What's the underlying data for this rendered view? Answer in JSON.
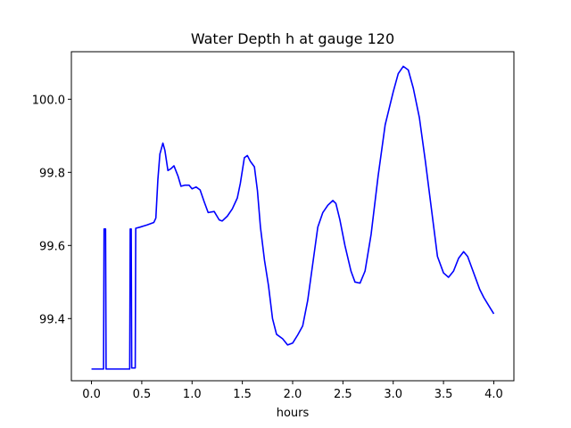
{
  "chart_data": {
    "type": "line",
    "title": "Water Depth h at gauge 120",
    "xlabel": "hours",
    "ylabel": "",
    "xlim": [
      -0.2,
      4.2
    ],
    "ylim": [
      99.23,
      100.13
    ],
    "x_ticks": [
      0.0,
      0.5,
      1.0,
      1.5,
      2.0,
      2.5,
      3.0,
      3.5,
      4.0
    ],
    "x_tick_labels": [
      "0.0",
      "0.5",
      "1.0",
      "1.5",
      "2.0",
      "2.5",
      "3.0",
      "3.5",
      "4.0"
    ],
    "y_ticks": [
      99.4,
      99.6,
      99.8,
      100.0
    ],
    "y_tick_labels": [
      "99.4",
      "99.6",
      "99.8",
      "100.0"
    ],
    "grid": false,
    "legend": "none",
    "series": [
      {
        "color": "#0000ff",
        "points": [
          [
            0.0,
            99.262
          ],
          [
            0.12,
            99.262
          ],
          [
            0.125,
            99.645
          ],
          [
            0.14,
            99.645
          ],
          [
            0.145,
            99.262
          ],
          [
            0.38,
            99.262
          ],
          [
            0.385,
            99.645
          ],
          [
            0.395,
            99.645
          ],
          [
            0.4,
            99.265
          ],
          [
            0.435,
            99.265
          ],
          [
            0.44,
            99.647
          ],
          [
            0.48,
            99.65
          ],
          [
            0.55,
            99.656
          ],
          [
            0.62,
            99.663
          ],
          [
            0.64,
            99.675
          ],
          [
            0.66,
            99.78
          ],
          [
            0.68,
            99.85
          ],
          [
            0.71,
            99.88
          ],
          [
            0.73,
            99.86
          ],
          [
            0.76,
            99.805
          ],
          [
            0.79,
            99.81
          ],
          [
            0.82,
            99.818
          ],
          [
            0.86,
            99.79
          ],
          [
            0.89,
            99.762
          ],
          [
            0.93,
            99.765
          ],
          [
            0.97,
            99.765
          ],
          [
            1.0,
            99.755
          ],
          [
            1.04,
            99.76
          ],
          [
            1.08,
            99.752
          ],
          [
            1.12,
            99.72
          ],
          [
            1.16,
            99.69
          ],
          [
            1.22,
            99.693
          ],
          [
            1.27,
            99.67
          ],
          [
            1.3,
            99.667
          ],
          [
            1.35,
            99.68
          ],
          [
            1.4,
            99.7
          ],
          [
            1.45,
            99.73
          ],
          [
            1.48,
            99.77
          ],
          [
            1.52,
            99.84
          ],
          [
            1.55,
            99.846
          ],
          [
            1.58,
            99.83
          ],
          [
            1.62,
            99.815
          ],
          [
            1.65,
            99.75
          ],
          [
            1.68,
            99.65
          ],
          [
            1.72,
            99.56
          ],
          [
            1.76,
            99.49
          ],
          [
            1.8,
            99.4
          ],
          [
            1.84,
            99.357
          ],
          [
            1.9,
            99.345
          ],
          [
            1.95,
            99.328
          ],
          [
            2.0,
            99.333
          ],
          [
            2.05,
            99.355
          ],
          [
            2.1,
            99.38
          ],
          [
            2.15,
            99.45
          ],
          [
            2.2,
            99.55
          ],
          [
            2.25,
            99.65
          ],
          [
            2.3,
            99.69
          ],
          [
            2.35,
            99.71
          ],
          [
            2.4,
            99.723
          ],
          [
            2.43,
            99.715
          ],
          [
            2.47,
            99.67
          ],
          [
            2.52,
            99.6
          ],
          [
            2.58,
            99.53
          ],
          [
            2.62,
            99.5
          ],
          [
            2.67,
            99.497
          ],
          [
            2.72,
            99.53
          ],
          [
            2.78,
            99.63
          ],
          [
            2.85,
            99.79
          ],
          [
            2.92,
            99.93
          ],
          [
            3.0,
            100.02
          ],
          [
            3.05,
            100.07
          ],
          [
            3.1,
            100.09
          ],
          [
            3.15,
            100.08
          ],
          [
            3.2,
            100.03
          ],
          [
            3.26,
            99.95
          ],
          [
            3.32,
            99.83
          ],
          [
            3.38,
            99.7
          ],
          [
            3.44,
            99.57
          ],
          [
            3.5,
            99.525
          ],
          [
            3.55,
            99.513
          ],
          [
            3.6,
            99.53
          ],
          [
            3.65,
            99.565
          ],
          [
            3.7,
            99.583
          ],
          [
            3.74,
            99.57
          ],
          [
            3.78,
            99.54
          ],
          [
            3.82,
            99.51
          ],
          [
            3.86,
            99.48
          ],
          [
            3.9,
            99.458
          ],
          [
            3.94,
            99.44
          ],
          [
            4.0,
            99.413
          ]
        ]
      }
    ]
  }
}
